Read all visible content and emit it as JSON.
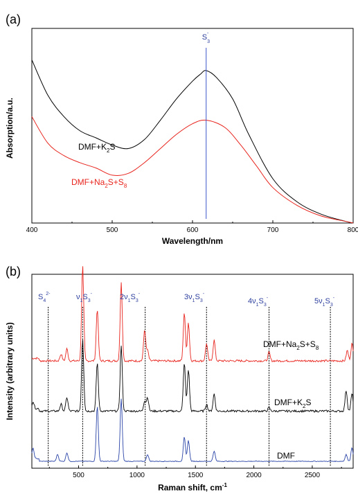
{
  "chart_data": [
    {
      "panel": "(a)",
      "type": "line",
      "xlabel": "Wavelength/nm",
      "ylabel": "Absorption/a.u.",
      "xlim": [
        400,
        800
      ],
      "xticks": [
        "400",
        "500",
        "600",
        "700",
        "800"
      ],
      "marker": {
        "label": "S3-",
        "x": 617
      },
      "series": [
        {
          "name": "DMF+K2S",
          "color": "#000000",
          "x": [
            400,
            420,
            440,
            460,
            480,
            500,
            520,
            540,
            560,
            580,
            600,
            610,
            617,
            630,
            650,
            670,
            700,
            730,
            760,
            790,
            800
          ],
          "y": [
            0.92,
            0.72,
            0.6,
            0.52,
            0.48,
            0.44,
            0.42,
            0.47,
            0.58,
            0.7,
            0.8,
            0.84,
            0.86,
            0.82,
            0.7,
            0.5,
            0.25,
            0.12,
            0.05,
            0.01,
            0.0
          ]
        },
        {
          "name": "DMF+Na2S+S8",
          "color": "#e8231c",
          "x": [
            400,
            420,
            440,
            460,
            480,
            500,
            520,
            540,
            560,
            580,
            600,
            617,
            640,
            660,
            680,
            700,
            730,
            760,
            790,
            800
          ],
          "y": [
            0.6,
            0.45,
            0.38,
            0.34,
            0.31,
            0.27,
            0.28,
            0.34,
            0.42,
            0.5,
            0.56,
            0.58,
            0.54,
            0.44,
            0.32,
            0.2,
            0.1,
            0.04,
            0.01,
            0.0
          ]
        }
      ]
    },
    {
      "panel": "(b)",
      "type": "line",
      "xlabel": "Raman shift, cm⁻¹",
      "ylabel": "Intensity (arbitrary units)",
      "xlim": [
        100,
        2850
      ],
      "xticks": [
        "500",
        "1000",
        "1500",
        "2000",
        "2500"
      ],
      "markers": [
        {
          "label": "S4 2-",
          "x": 240
        },
        {
          "label": "v1S3-",
          "x": 535
        },
        {
          "label": "2v1S3-",
          "x": 1070
        },
        {
          "label": "3v1S3-",
          "x": 1595
        },
        {
          "label": "4v1S3-",
          "x": 2130
        },
        {
          "label": "5v1S3-",
          "x": 2655
        }
      ],
      "series": [
        {
          "name": "DMF+Na2S+S8",
          "color": "#e8231c",
          "offset": 0.62,
          "peaks": [
            [
              350,
              0.04
            ],
            [
              400,
              0.07
            ],
            [
              535,
              0.55
            ],
            [
              660,
              0.3
            ],
            [
              865,
              0.45
            ],
            [
              1065,
              0.18
            ],
            [
              1090,
              0.06
            ],
            [
              1405,
              0.28
            ],
            [
              1440,
              0.22
            ],
            [
              1595,
              0.1
            ],
            [
              1660,
              0.12
            ],
            [
              2130,
              0.05
            ],
            [
              2800,
              0.06
            ],
            [
              2840,
              0.1
            ]
          ]
        },
        {
          "name": "DMF+K2S",
          "color": "#000000",
          "offset": 0.33,
          "peaks": [
            [
              110,
              0.04
            ],
            [
              350,
              0.04
            ],
            [
              400,
              0.08
            ],
            [
              535,
              0.42
            ],
            [
              660,
              0.28
            ],
            [
              865,
              0.38
            ],
            [
              1065,
              0.06
            ],
            [
              1090,
              0.08
            ],
            [
              1405,
              0.28
            ],
            [
              1440,
              0.24
            ],
            [
              1595,
              0.04
            ],
            [
              1660,
              0.1
            ],
            [
              2130,
              0.02
            ],
            [
              2790,
              0.12
            ],
            [
              2840,
              0.1
            ]
          ]
        },
        {
          "name": "DMF",
          "color": "#2a44a8",
          "offset": 0.04,
          "peaks": [
            [
              110,
              0.06
            ],
            [
              320,
              0.04
            ],
            [
              400,
              0.05
            ],
            [
              660,
              0.32
            ],
            [
              865,
              0.36
            ],
            [
              1090,
              0.04
            ],
            [
              1405,
              0.14
            ],
            [
              1440,
              0.12
            ],
            [
              1660,
              0.06
            ],
            [
              2790,
              0.04
            ],
            [
              2840,
              0.08
            ]
          ]
        }
      ]
    }
  ],
  "labels": {
    "a_panel": "(a)",
    "a_xlabel": "Wavelength/nm",
    "a_ylabel": "Absorption/a.u.",
    "a_marker": "S",
    "a_marker_sub": "3",
    "a_marker_sup": "-",
    "a_k2s_main": "DMF+K",
    "a_k2s_sub": "2",
    "a_k2s_end": "S",
    "a_na_main": "DMF+Na",
    "a_na_sub1": "2",
    "a_na_mid": "S+S",
    "a_na_sub2": "8",
    "b_panel": "(b)",
    "b_xlabel": "Raman shift, cm",
    "b_xlabel_sup": "-1",
    "b_ylabel": "Intensity (arbitrary units)",
    "b_red_main": "DMF+Na",
    "b_red_sub1": "2",
    "b_red_mid": "S+S",
    "b_red_sub2": "8",
    "b_black_main": "DMF+K",
    "b_black_sub": "2",
    "b_black_end": "S",
    "b_blue": "DMF",
    "m_s4": "S",
    "m_s4_sub": "4",
    "m_s4_sup": "2-",
    "m_v": "ν",
    "m_1": "1",
    "m_s": "S",
    "m_3": "3",
    "m_minus": "-",
    "m_2": "2",
    "m_3v": "3",
    "m_4": "4",
    "m_5": "5"
  },
  "colors": {
    "black": "#000000",
    "red": "#e8231c",
    "blue": "#2a44a8",
    "marker": "#2c3e9e"
  }
}
